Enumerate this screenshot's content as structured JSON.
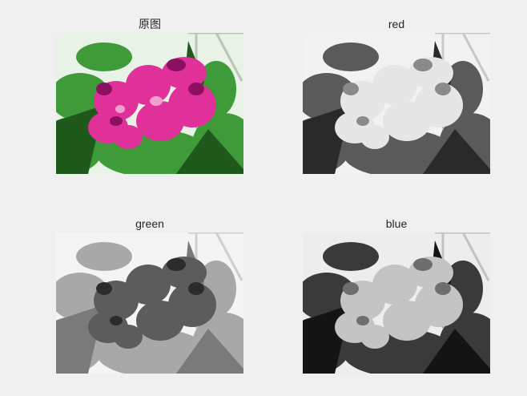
{
  "panels": [
    {
      "title": "原图",
      "channel": "original"
    },
    {
      "title": "red",
      "channel": "red"
    },
    {
      "title": "green",
      "channel": "green"
    },
    {
      "title": "blue",
      "channel": "blue"
    }
  ],
  "colors": {
    "background": "#f0f0f0",
    "title_text": "#262626",
    "petal": "#e0309a",
    "petal_dark": "#8c1060",
    "leaf": "#3f9a3a",
    "leaf_dark": "#1f5a1c"
  }
}
